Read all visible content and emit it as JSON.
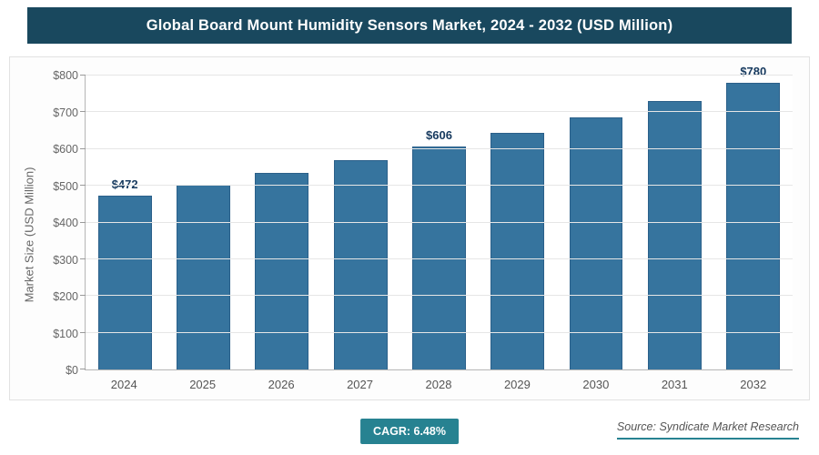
{
  "header": {
    "title": "Global Board Mount Humidity Sensors Market, 2024 - 2032 (USD Million)"
  },
  "chart_data": {
    "type": "bar",
    "title": "Global Board Mount Humidity Sensors Market, 2024 - 2032 (USD Million)",
    "categories": [
      "2024",
      "2025",
      "2026",
      "2027",
      "2028",
      "2029",
      "2030",
      "2031",
      "2032"
    ],
    "values": [
      472,
      503,
      535,
      570,
      606,
      645,
      687,
      731,
      780
    ],
    "bar_labels": [
      "$472",
      "",
      "",
      "",
      "$606",
      "",
      "",
      "",
      "$780"
    ],
    "ylabel": "Market Size (USD Million)",
    "xlabel": "",
    "ylim": [
      0,
      800
    ],
    "ytick_values": [
      0,
      100,
      200,
      300,
      400,
      500,
      600,
      700,
      800
    ],
    "ytick_labels": [
      "$0",
      "$100",
      "$200",
      "$300",
      "$400",
      "$500",
      "$600",
      "$700",
      "$800"
    ],
    "grid": true,
    "legend": "none",
    "colors": {
      "bar_fill": "#36749e",
      "bar_border": "#2b608a",
      "header_bg": "#19485e",
      "accent_teal": "#278291",
      "data_label": "#16395e"
    }
  },
  "footer": {
    "cagr_label": "CAGR: 6.48%",
    "source": "Source: Syndicate Market Research"
  }
}
